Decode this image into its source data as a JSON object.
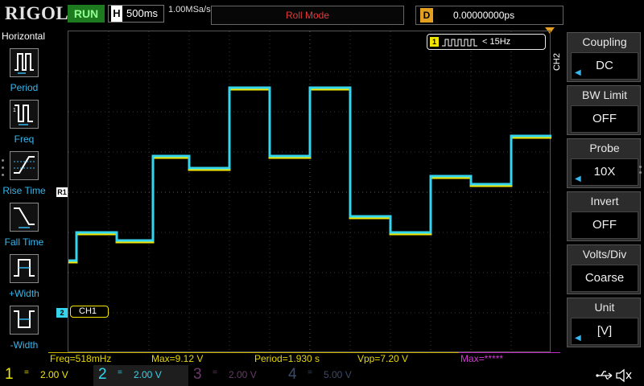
{
  "topbar": {
    "brand": "RIGOL",
    "run_label": "RUN",
    "timebase_label": "H",
    "timebase_value": "500ms",
    "sample_rate": "1.00MSa/s",
    "mode": "Roll Mode",
    "delay_label": "D",
    "delay_value": "0.00000000ps"
  },
  "leftpanel": {
    "title": "Horizontal",
    "items": [
      {
        "label": "Period",
        "icon": "period-icon"
      },
      {
        "label": "Freq",
        "icon": "freq-icon"
      },
      {
        "label": "Rise Time",
        "icon": "rise-time-icon"
      },
      {
        "label": "Fall Time",
        "icon": "fall-time-icon"
      },
      {
        "label": "+Width",
        "icon": "positive-width-icon"
      },
      {
        "label": "-Width",
        "icon": "negative-width-icon"
      }
    ]
  },
  "overlay": {
    "freq_channel": "1",
    "freq_text": "< 15Hz",
    "ch1_label": "CH1",
    "ch2_marker": "2",
    "ref_marker": "R1",
    "side_channel": "CH2"
  },
  "rightpanel": {
    "items": [
      {
        "title": "Coupling",
        "value": "DC",
        "has_arrow": true
      },
      {
        "title": "BW Limit",
        "value": "OFF",
        "has_arrow": false
      },
      {
        "title": "Probe",
        "value": "10X",
        "has_arrow": true
      },
      {
        "title": "Invert",
        "value": "OFF",
        "has_arrow": false
      },
      {
        "title": "Volts/Div",
        "value": "Coarse",
        "has_arrow": false
      },
      {
        "title": "Unit",
        "value": "[V]",
        "has_arrow": true
      }
    ]
  },
  "measurements": [
    {
      "text": "Freq=518mHz"
    },
    {
      "text": "Max=9.12 V"
    },
    {
      "text": "Period=1.930 s"
    },
    {
      "text": "Vpp=7.20 V"
    },
    {
      "text": "Max=*****"
    }
  ],
  "channels": [
    {
      "num": "1",
      "coupling": "=",
      "scale": "2.00 V"
    },
    {
      "num": "2",
      "coupling": "=",
      "scale": "2.00 V"
    },
    {
      "num": "3",
      "coupling": "=",
      "scale": "2.00 V"
    },
    {
      "num": "4",
      "coupling": "=",
      "scale": "5.00 V"
    }
  ],
  "colors": {
    "ch1": "#f2e600",
    "ch2": "#33d6ee",
    "accent": "#35b8ee",
    "run": "#1e7a1e",
    "roll_mode": "#e23b3b"
  },
  "waveform": {
    "time_divisions": 12,
    "voltage_divisions": 8,
    "time_per_div_s": 0.5,
    "ch2_levels_div": [
      [
        0.0,
        2.3
      ],
      [
        0.2,
        2.3
      ],
      [
        0.2,
        3.0
      ],
      [
        1.2,
        3.0
      ],
      [
        1.2,
        2.8
      ],
      [
        2.1,
        2.8
      ],
      [
        2.1,
        4.9
      ],
      [
        3.0,
        4.9
      ],
      [
        3.0,
        4.6
      ],
      [
        4.0,
        4.6
      ],
      [
        4.0,
        6.6
      ],
      [
        5.0,
        6.6
      ],
      [
        5.0,
        4.9
      ],
      [
        6.0,
        4.9
      ],
      [
        6.0,
        6.6
      ],
      [
        7.0,
        6.6
      ],
      [
        7.0,
        3.4
      ],
      [
        8.0,
        3.4
      ],
      [
        8.0,
        3.0
      ],
      [
        9.0,
        3.0
      ],
      [
        9.0,
        4.4
      ],
      [
        10.0,
        4.4
      ],
      [
        10.0,
        4.2
      ],
      [
        11.0,
        4.2
      ],
      [
        11.0,
        5.4
      ],
      [
        12.0,
        5.4
      ]
    ]
  }
}
